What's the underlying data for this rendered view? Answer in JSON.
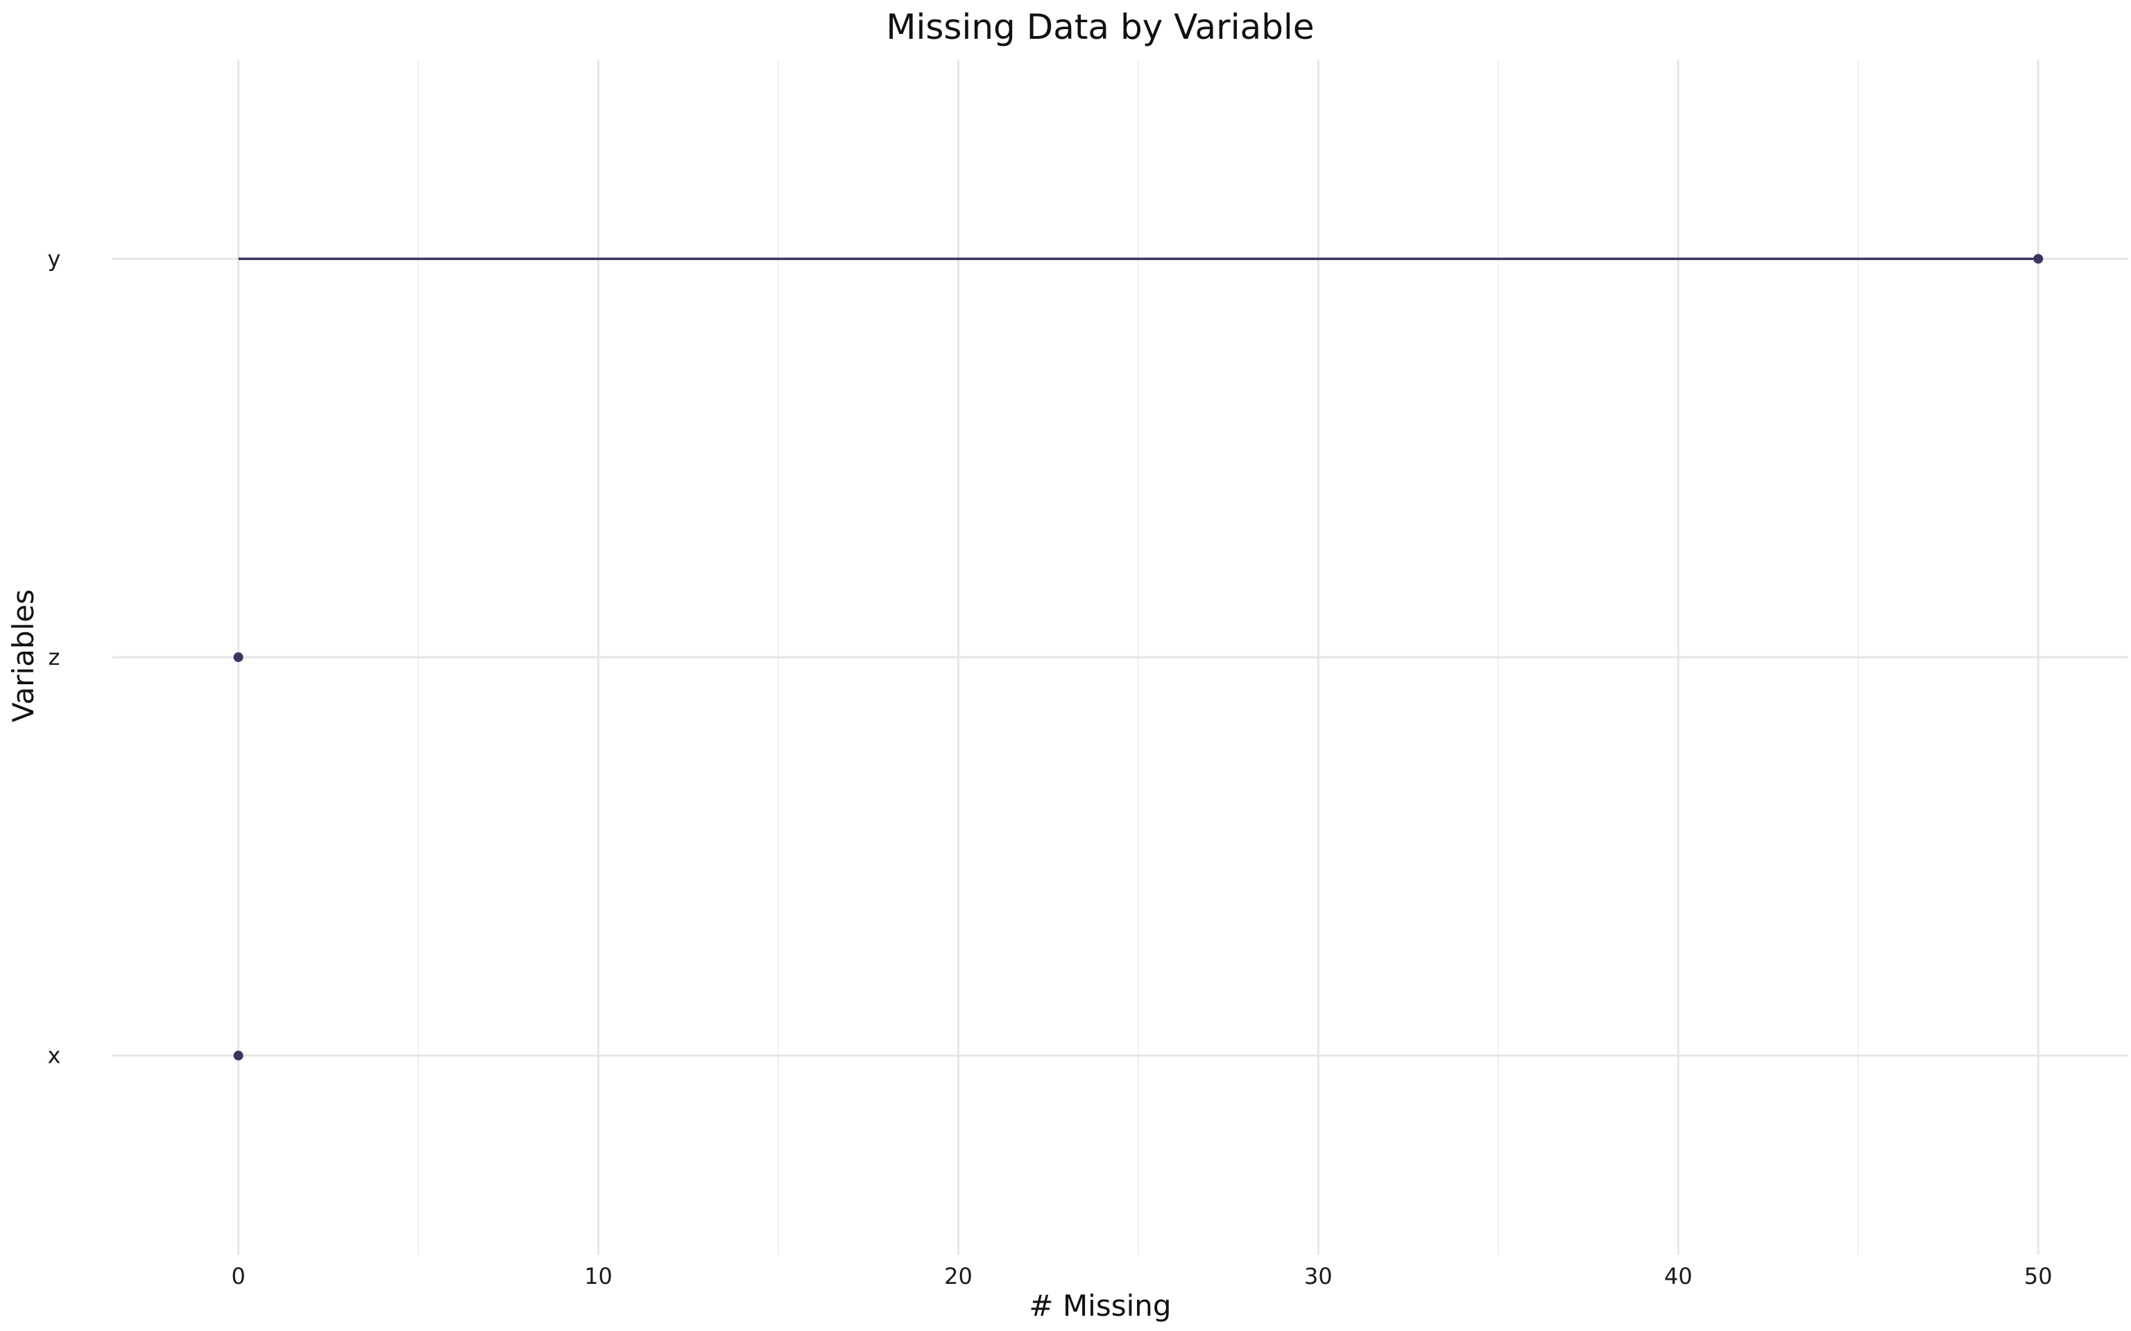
{
  "chart_data": {
    "type": "lollipop",
    "title": "Missing Data by Variable",
    "xlabel": "# Missing",
    "ylabel": "Variables",
    "xlim": [
      -3.5,
      52.5
    ],
    "x_ticks": [
      0,
      10,
      20,
      30,
      40,
      50
    ],
    "x_minor_ticks": [
      5,
      15,
      25,
      35,
      45
    ],
    "categories": [
      "y",
      "z",
      "x"
    ],
    "values": [
      50,
      0,
      0
    ],
    "grid": true,
    "legend": "none",
    "colors": {
      "point": "#3b3560",
      "stem": "#3b3560",
      "grid": "#e6e6e8"
    }
  }
}
